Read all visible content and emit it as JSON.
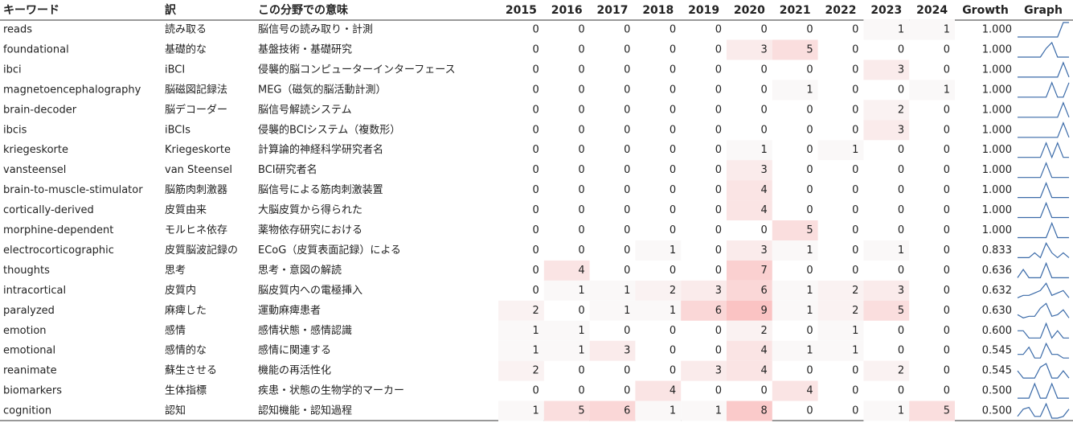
{
  "table": {
    "columns": [
      "キーワード",
      "訳",
      "この分野での意味",
      "2015",
      "2016",
      "2017",
      "2018",
      "2019",
      "2020",
      "2021",
      "2022",
      "2023",
      "2024",
      "Growth",
      "Graph"
    ],
    "rows": [
      {
        "keyword": "reads",
        "translation": "読み取る",
        "meaning": "脳信号の読み取り・計測",
        "counts": [
          0,
          0,
          0,
          0,
          0,
          0,
          0,
          0,
          1,
          1
        ],
        "growth": "1.000"
      },
      {
        "keyword": "foundational",
        "translation": "基礎的な",
        "meaning": "基盤技術・基礎研究",
        "counts": [
          0,
          0,
          0,
          0,
          0,
          3,
          5,
          0,
          0,
          0
        ],
        "growth": "1.000"
      },
      {
        "keyword": "ibci",
        "translation": "iBCI",
        "meaning": "侵襲的脳コンピューターインターフェース",
        "counts": [
          0,
          0,
          0,
          0,
          0,
          0,
          0,
          0,
          3,
          0
        ],
        "growth": "1.000"
      },
      {
        "keyword": "magnetoencephalography",
        "translation": "脳磁図記録法",
        "meaning": "MEG（磁気的脳活動計測）",
        "counts": [
          0,
          0,
          0,
          0,
          0,
          0,
          1,
          0,
          0,
          1
        ],
        "growth": "1.000"
      },
      {
        "keyword": "brain-decoder",
        "translation": "脳デコーダー",
        "meaning": "脳信号解読システム",
        "counts": [
          0,
          0,
          0,
          0,
          0,
          0,
          0,
          0,
          2,
          0
        ],
        "growth": "1.000"
      },
      {
        "keyword": "ibcis",
        "translation": "iBCIs",
        "meaning": "侵襲的BCIシステム（複数形）",
        "counts": [
          0,
          0,
          0,
          0,
          0,
          0,
          0,
          0,
          3,
          0
        ],
        "growth": "1.000"
      },
      {
        "keyword": "kriegeskorte",
        "translation": "Kriegeskorte",
        "meaning": "計算論的神経科学研究者名",
        "counts": [
          0,
          0,
          0,
          0,
          0,
          1,
          0,
          1,
          0,
          0
        ],
        "growth": "1.000"
      },
      {
        "keyword": "vansteensel",
        "translation": "van Steensel",
        "meaning": "BCI研究者名",
        "counts": [
          0,
          0,
          0,
          0,
          0,
          3,
          0,
          0,
          0,
          0
        ],
        "growth": "1.000"
      },
      {
        "keyword": "brain-to-muscle-stimulator",
        "translation": "脳筋肉刺激器",
        "meaning": "脳信号による筋肉刺激装置",
        "counts": [
          0,
          0,
          0,
          0,
          0,
          4,
          0,
          0,
          0,
          0
        ],
        "growth": "1.000"
      },
      {
        "keyword": "cortically-derived",
        "translation": "皮質由来",
        "meaning": "大脳皮質から得られた",
        "counts": [
          0,
          0,
          0,
          0,
          0,
          4,
          0,
          0,
          0,
          0
        ],
        "growth": "1.000"
      },
      {
        "keyword": "morphine-dependent",
        "translation": "モルヒネ依存",
        "meaning": "薬物依存研究における",
        "counts": [
          0,
          0,
          0,
          0,
          0,
          0,
          5,
          0,
          0,
          0
        ],
        "growth": "1.000"
      },
      {
        "keyword": "electrocorticographic",
        "translation": "皮質脳波記録の",
        "meaning": "ECoG（皮質表面記録）による",
        "counts": [
          0,
          0,
          0,
          1,
          0,
          3,
          1,
          0,
          1,
          0
        ],
        "growth": "0.833"
      },
      {
        "keyword": "thoughts",
        "translation": "思考",
        "meaning": "思考・意図の解読",
        "counts": [
          0,
          4,
          0,
          0,
          0,
          7,
          0,
          0,
          0,
          0
        ],
        "growth": "0.636"
      },
      {
        "keyword": "intracortical",
        "translation": "皮質内",
        "meaning": "脳皮質内への電極挿入",
        "counts": [
          0,
          1,
          1,
          2,
          3,
          6,
          1,
          2,
          3,
          0
        ],
        "growth": "0.632"
      },
      {
        "keyword": "paralyzed",
        "translation": "麻痺した",
        "meaning": "運動麻痺患者",
        "counts": [
          2,
          0,
          1,
          1,
          6,
          9,
          1,
          2,
          5,
          0
        ],
        "growth": "0.630"
      },
      {
        "keyword": "emotion",
        "translation": "感情",
        "meaning": "感情状態・感情認識",
        "counts": [
          1,
          1,
          0,
          0,
          0,
          2,
          0,
          1,
          0,
          0
        ],
        "growth": "0.600"
      },
      {
        "keyword": "emotional",
        "translation": "感情的な",
        "meaning": "感情に関連する",
        "counts": [
          1,
          1,
          3,
          0,
          0,
          4,
          1,
          1,
          0,
          0
        ],
        "growth": "0.545"
      },
      {
        "keyword": "reanimate",
        "translation": "蘇生させる",
        "meaning": "機能の再活性化",
        "counts": [
          2,
          0,
          0,
          0,
          3,
          4,
          0,
          0,
          2,
          0
        ],
        "growth": "0.545"
      },
      {
        "keyword": "biomarkers",
        "translation": "生体指標",
        "meaning": "疾患・状態の生物学的マーカー",
        "counts": [
          0,
          0,
          0,
          4,
          0,
          0,
          4,
          0,
          0,
          0
        ],
        "growth": "0.500"
      },
      {
        "keyword": "cognition",
        "translation": "認知",
        "meaning": "認知機能・認知過程",
        "counts": [
          1,
          5,
          6,
          1,
          1,
          8,
          0,
          0,
          1,
          5
        ],
        "growth": "0.500"
      }
    ]
  }
}
